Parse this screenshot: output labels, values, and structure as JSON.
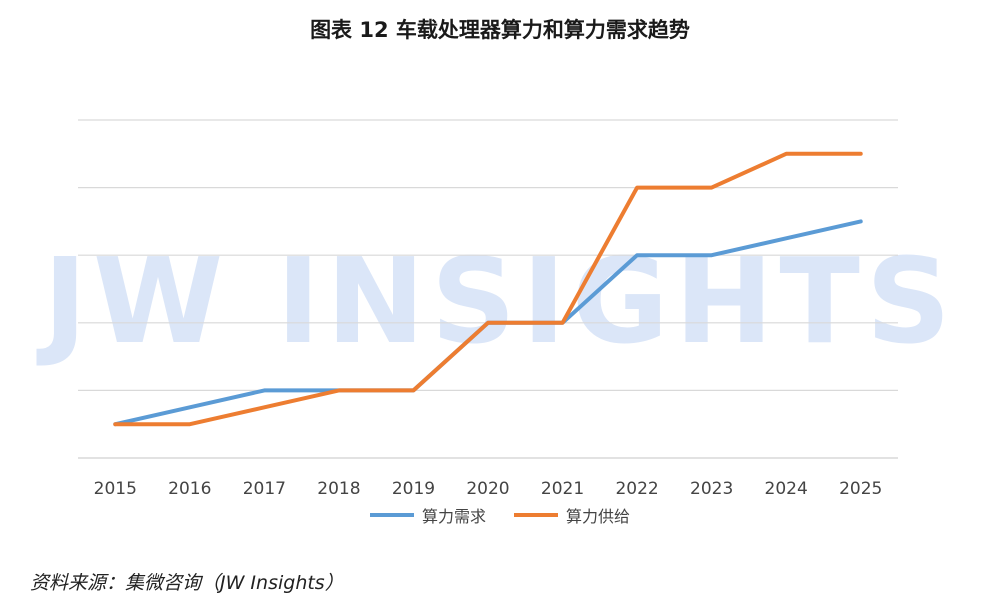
{
  "header": {
    "title": "图表 12  车载处理器算力和算力需求趋势"
  },
  "watermark": "JW INSIGHTS",
  "footer": {
    "source": "资料来源：集微咨询（JW Insights）"
  },
  "colors": {
    "demand": "#5B9BD5",
    "supply": "#ED7D31",
    "grid": "#d9d9d9",
    "watermark": "#dbe6f8"
  },
  "chart_data": {
    "type": "line",
    "title": "图表 12  车载处理器算力和算力需求趋势",
    "xlabel": "",
    "ylabel": "",
    "categories": [
      "2015",
      "2016",
      "2017",
      "2018",
      "2019",
      "2020",
      "2021",
      "2022",
      "2023",
      "2024",
      "2025"
    ],
    "ylim": [
      0,
      5
    ],
    "y_ticks_labeled": false,
    "grid": true,
    "legend_position": "bottom",
    "series": [
      {
        "name": "算力需求",
        "color": "#5B9BD5",
        "values": [
          0.5,
          0.75,
          1.0,
          1.0,
          1.0,
          2.0,
          2.0,
          3.0,
          3.0,
          3.25,
          3.5
        ]
      },
      {
        "name": "算力供给",
        "color": "#ED7D31",
        "values": [
          0.5,
          0.5,
          0.75,
          1.0,
          1.0,
          2.0,
          2.0,
          4.0,
          4.0,
          4.5,
          4.5
        ]
      }
    ]
  }
}
